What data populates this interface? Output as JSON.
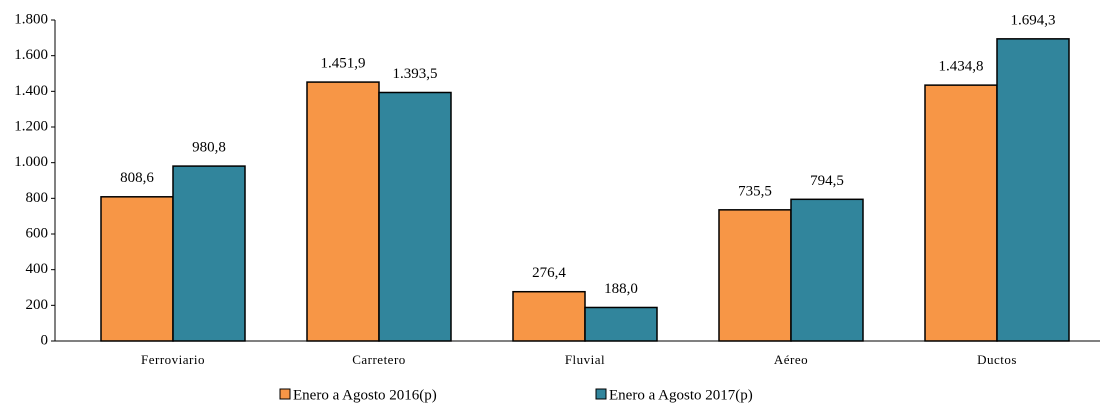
{
  "chart_data": {
    "type": "bar",
    "categories": [
      "Ferroviario",
      "Carretero",
      "Fluvial",
      "Aéreo",
      "Ductos"
    ],
    "series": [
      {
        "name": "Enero a Agosto 2016(p)",
        "color": "#f79646",
        "values": [
          808.6,
          1451.9,
          276.4,
          735.5,
          1434.8
        ],
        "value_labels": [
          "808,6",
          "1.451,9",
          "276,4",
          "735,5",
          "1.434,8"
        ]
      },
      {
        "name": "Enero a Agosto 2017(p)",
        "color": "#31859c",
        "values": [
          980.8,
          1393.5,
          188.0,
          794.5,
          1694.3
        ],
        "value_labels": [
          "980,8",
          "1.393,5",
          "188,0",
          "794,5",
          "1.694,3"
        ]
      }
    ],
    "ylim": [
      0,
      1800
    ],
    "yticks": [
      0,
      200,
      400,
      600,
      800,
      {
        "value": 1000,
        "label": "1.000"
      },
      {
        "value": 1200,
        "label": "1.200"
      },
      {
        "value": 1400,
        "label": "1.400"
      },
      {
        "value": 1600,
        "label": "1.600"
      },
      {
        "value": 1800,
        "label": "1.800"
      }
    ],
    "legend": "bottom"
  }
}
